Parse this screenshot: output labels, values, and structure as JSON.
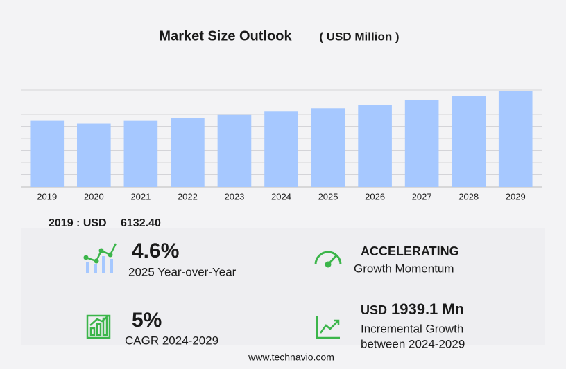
{
  "chart_data": {
    "type": "bar",
    "title": "Market Size Outlook",
    "unit": "( USD Million )",
    "categories": [
      "2019",
      "2020",
      "2021",
      "2022",
      "2023",
      "2024",
      "2025",
      "2026",
      "2027",
      "2028",
      "2029"
    ],
    "values": [
      6132.4,
      5880,
      6130,
      6400,
      6700,
      6990,
      7312,
      7650,
      8050,
      8470,
      8929.1
    ],
    "color": "#a6c8ff",
    "ylim": [
      0,
      9000
    ],
    "grid": true
  },
  "summary": {
    "base_label": "2019 : USD",
    "base_value": "6132.40",
    "yoy": {
      "value": "4.6%",
      "label": "2025 Year-over-Year"
    },
    "momentum": {
      "value": "ACCELERATING",
      "label": "Growth Momentum"
    },
    "cagr": {
      "value": "5%",
      "label": "CAGR 2024-2029"
    },
    "increment": {
      "prefix": "USD",
      "value": "1939.1 Mn",
      "label1": "Incremental Growth",
      "label2": "between 2024-2029"
    }
  },
  "footer": "www.technavio.com"
}
